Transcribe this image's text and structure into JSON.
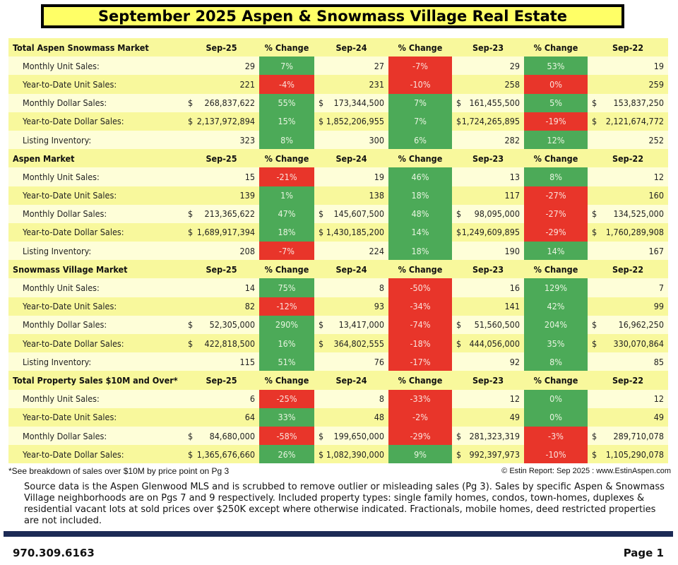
{
  "title": "September 2025 Aspen & Snowmass Village Real Estate",
  "columns": [
    "Sep-25",
    "% Change",
    "Sep-24",
    "% Change",
    "Sep-23",
    "% Change",
    "Sep-22"
  ],
  "currency_symbol": "$",
  "colors": {
    "up": "#4caa58",
    "down": "#e8352a",
    "row_light": "#fefed8",
    "row_dark": "#f8f89c"
  },
  "sections": [
    {
      "name": "Total Aspen Snowmass Market",
      "rows": [
        {
          "label": "Monthly Unit Sales:",
          "dollar": false,
          "values": [
            "29",
            "27",
            "29",
            "19"
          ],
          "changes": [
            [
              "7%",
              "up"
            ],
            [
              "-7%",
              "down"
            ],
            [
              "53%",
              "up"
            ]
          ]
        },
        {
          "label": "Year-to-Date Unit Sales:",
          "dollar": false,
          "values": [
            "221",
            "231",
            "258",
            "259"
          ],
          "changes": [
            [
              "-4%",
              "down"
            ],
            [
              "-10%",
              "down"
            ],
            [
              "0%",
              "down"
            ]
          ]
        },
        {
          "label": "Monthly Dollar Sales:",
          "dollar": true,
          "values": [
            "268,837,622",
            "173,344,500",
            "161,455,500",
            "153,837,250"
          ],
          "changes": [
            [
              "55%",
              "up"
            ],
            [
              "7%",
              "up"
            ],
            [
              "5%",
              "up"
            ]
          ]
        },
        {
          "label": "Year-to-Date Dollar Sales:",
          "dollar": true,
          "values": [
            "2,137,972,894",
            "1,852,206,955",
            "1,724,265,895",
            "2,121,674,772"
          ],
          "changes": [
            [
              "15%",
              "up"
            ],
            [
              "7%",
              "up"
            ],
            [
              "-19%",
              "down"
            ]
          ]
        },
        {
          "label": "Listing Inventory:",
          "dollar": false,
          "values": [
            "323",
            "300",
            "282",
            "252"
          ],
          "changes": [
            [
              "8%",
              "up"
            ],
            [
              "6%",
              "up"
            ],
            [
              "12%",
              "up"
            ]
          ]
        }
      ]
    },
    {
      "name": "Aspen Market",
      "rows": [
        {
          "label": "Monthly Unit Sales:",
          "dollar": false,
          "values": [
            "15",
            "19",
            "13",
            "12"
          ],
          "changes": [
            [
              "-21%",
              "down"
            ],
            [
              "46%",
              "up"
            ],
            [
              "8%",
              "up"
            ]
          ]
        },
        {
          "label": "Year-to-Date Unit Sales:",
          "dollar": false,
          "values": [
            "139",
            "138",
            "117",
            "160"
          ],
          "changes": [
            [
              "1%",
              "up"
            ],
            [
              "18%",
              "up"
            ],
            [
              "-27%",
              "down"
            ]
          ]
        },
        {
          "label": "Monthly Dollar Sales:",
          "dollar": true,
          "values": [
            "213,365,622",
            "145,607,500",
            "98,095,000",
            "134,525,000"
          ],
          "changes": [
            [
              "47%",
              "up"
            ],
            [
              "48%",
              "up"
            ],
            [
              "-27%",
              "down"
            ]
          ]
        },
        {
          "label": "Year-to-Date Dollar Sales:",
          "dollar": true,
          "values": [
            "1,689,917,394",
            "1,430,185,200",
            "1,249,609,895",
            "1,760,289,908"
          ],
          "changes": [
            [
              "18%",
              "up"
            ],
            [
              "14%",
              "up"
            ],
            [
              "-29%",
              "down"
            ]
          ]
        },
        {
          "label": "Listing Inventory:",
          "dollar": false,
          "values": [
            "208",
            "224",
            "190",
            "167"
          ],
          "changes": [
            [
              "-7%",
              "down"
            ],
            [
              "18%",
              "up"
            ],
            [
              "14%",
              "up"
            ]
          ]
        }
      ]
    },
    {
      "name": "Snowmass Village Market",
      "rows": [
        {
          "label": "Monthly Unit Sales:",
          "dollar": false,
          "values": [
            "14",
            "8",
            "16",
            "7"
          ],
          "changes": [
            [
              "75%",
              "up"
            ],
            [
              "-50%",
              "down"
            ],
            [
              "129%",
              "up"
            ]
          ]
        },
        {
          "label": "Year-to-Date Unit Sales:",
          "dollar": false,
          "values": [
            "82",
            "93",
            "141",
            "99"
          ],
          "changes": [
            [
              "-12%",
              "down"
            ],
            [
              "-34%",
              "down"
            ],
            [
              "42%",
              "up"
            ]
          ]
        },
        {
          "label": "Monthly Dollar Sales:",
          "dollar": true,
          "values": [
            "52,305,000",
            "13,417,000",
            "51,560,500",
            "16,962,250"
          ],
          "changes": [
            [
              "290%",
              "up"
            ],
            [
              "-74%",
              "down"
            ],
            [
              "204%",
              "up"
            ]
          ]
        },
        {
          "label": "Year-to-Date Dollar Sales:",
          "dollar": true,
          "values": [
            "422,818,500",
            "364,802,555",
            "444,056,000",
            "330,070,864"
          ],
          "changes": [
            [
              "16%",
              "up"
            ],
            [
              "-18%",
              "down"
            ],
            [
              "35%",
              "up"
            ]
          ]
        },
        {
          "label": "Listing Inventory:",
          "dollar": false,
          "values": [
            "115",
            "76",
            "92",
            "85"
          ],
          "changes": [
            [
              "51%",
              "up"
            ],
            [
              "-17%",
              "down"
            ],
            [
              "8%",
              "up"
            ]
          ]
        }
      ]
    },
    {
      "name": "Total Property Sales $10M and Over*",
      "rows": [
        {
          "label": "Monthly Unit Sales:",
          "dollar": false,
          "values": [
            "6",
            "8",
            "12",
            "12"
          ],
          "changes": [
            [
              "-25%",
              "down"
            ],
            [
              "-33%",
              "down"
            ],
            [
              "0%",
              "up"
            ]
          ]
        },
        {
          "label": "Year-to-Date Unit Sales:",
          "dollar": false,
          "values": [
            "64",
            "48",
            "49",
            "49"
          ],
          "changes": [
            [
              "33%",
              "up"
            ],
            [
              "-2%",
              "down"
            ],
            [
              "0%",
              "up"
            ]
          ]
        },
        {
          "label": "Monthly Dollar Sales:",
          "dollar": true,
          "values": [
            "84,680,000",
            "199,650,000",
            "281,323,319",
            "289,710,078"
          ],
          "changes": [
            [
              "-58%",
              "down"
            ],
            [
              "-29%",
              "down"
            ],
            [
              "-3%",
              "down"
            ]
          ]
        },
        {
          "label": "Year-to-Date Dollar Sales:",
          "dollar": true,
          "values": [
            "1,365,676,660",
            "1,082,390,000",
            "992,397,973",
            "1,105,290,078"
          ],
          "changes": [
            [
              "26%",
              "up"
            ],
            [
              "9%",
              "up"
            ],
            [
              "-10%",
              "down"
            ]
          ]
        }
      ]
    }
  ],
  "footnote": "*See breakdown of sales over $10M by price point on Pg 3",
  "copyright": "© Estin Report: Sep 2025 : www.EstinAspen.com",
  "source": "Source data is the Aspen Glenwood MLS and is scrubbed to remove outlier or misleading sales (Pg 3). Sales by specific Aspen & Snowmass Village neighborhoods are on Pgs 7 and 9 respectively. Included property types: single family homes, condos, town-homes, duplexes & residential vacant lots at sold prices over $250K except where otherwise indicated. Fractionals, mobile homes, deed restricted properties are not included.",
  "phone": "970.309.6163",
  "page": "Page 1"
}
